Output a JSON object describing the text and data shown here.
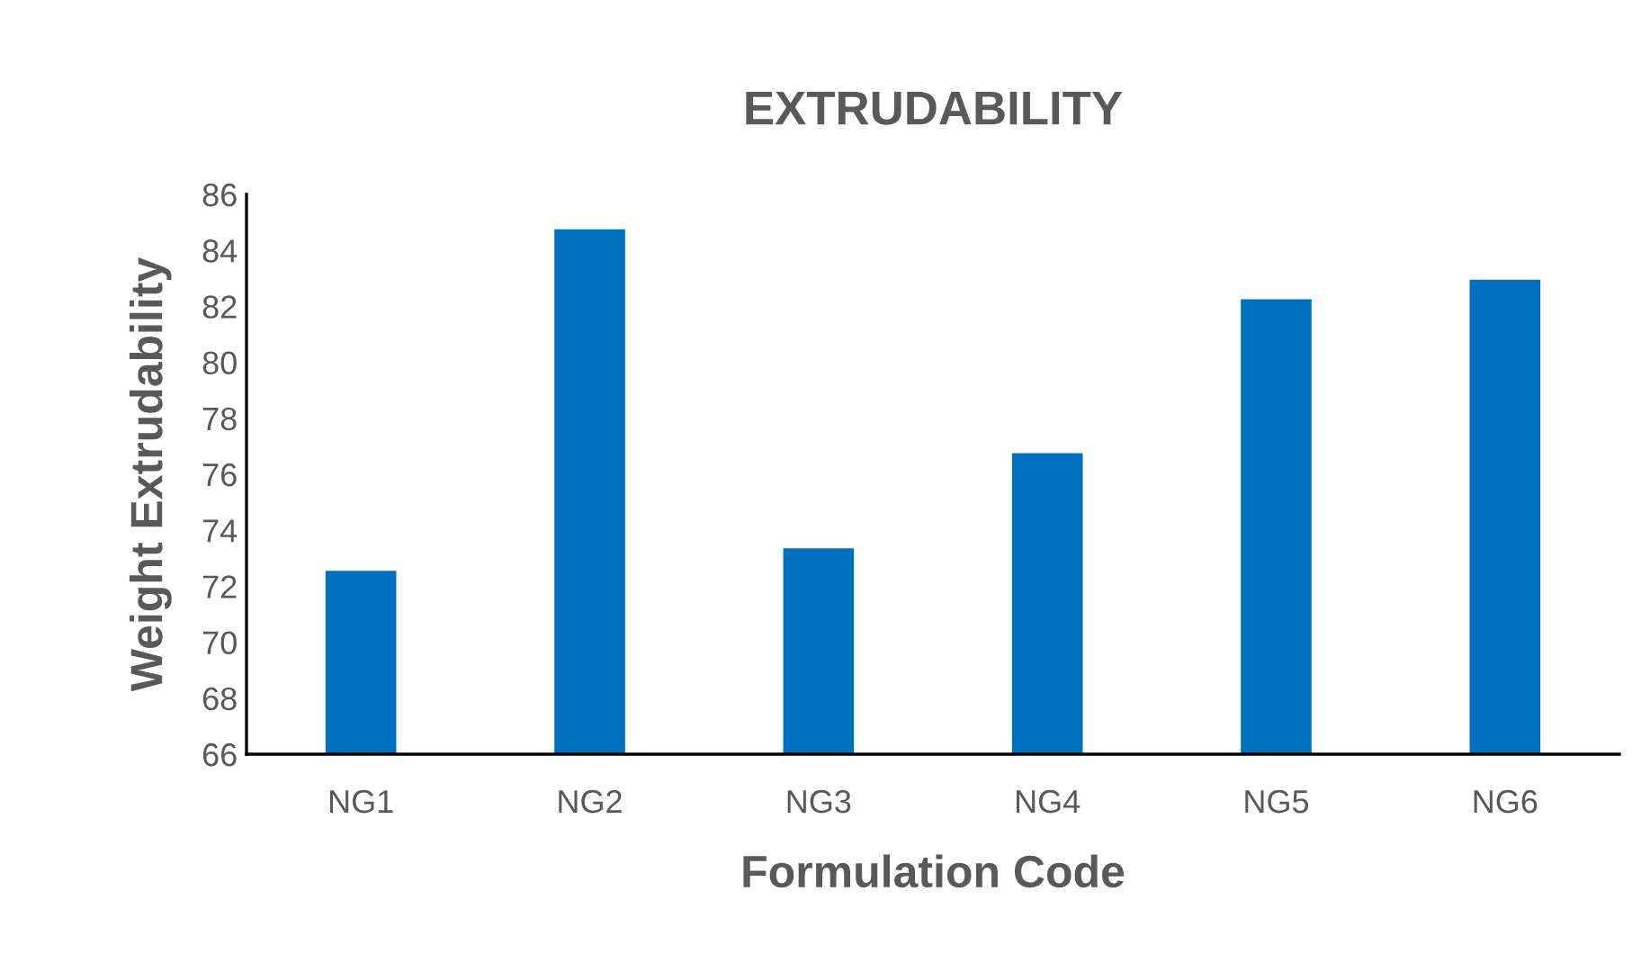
{
  "chart_data": {
    "type": "bar",
    "title": "EXTRUDABILITY",
    "xlabel": "Formulation Code",
    "ylabel": "Weight Extrudability",
    "categories": [
      "NG1",
      "NG2",
      "NG3",
      "NG4",
      "NG5",
      "NG6"
    ],
    "values": [
      72.6,
      84.8,
      73.4,
      76.8,
      82.3,
      83.0
    ],
    "color": "#0070c0",
    "ylim": [
      66,
      86
    ],
    "yticks": [
      66,
      68,
      70,
      72,
      74,
      76,
      78,
      80,
      82,
      84,
      86
    ],
    "grid": false,
    "legend": false
  }
}
